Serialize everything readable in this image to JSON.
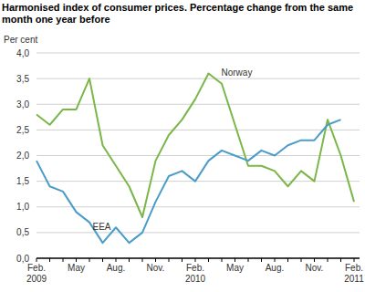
{
  "chart_data": {
    "type": "line",
    "title": "Harmonised index of consumer prices. Percentage change from the same month one year before",
    "y_label": "Per cent",
    "categories": [
      "Feb.\n2009",
      null,
      null,
      "May",
      null,
      null,
      "Aug.",
      null,
      null,
      "Nov.",
      null,
      null,
      "Feb.\n2010",
      null,
      null,
      "May",
      null,
      null,
      "Aug.",
      null,
      null,
      "Nov.",
      null,
      null,
      "Feb.\n2011"
    ],
    "series": [
      {
        "name": "Norway",
        "color": "#7ab648",
        "values": [
          2.8,
          2.6,
          2.9,
          2.9,
          3.5,
          2.2,
          1.8,
          1.4,
          0.8,
          1.9,
          2.4,
          2.7,
          3.1,
          3.6,
          3.4,
          2.6,
          1.8,
          1.8,
          1.7,
          1.4,
          1.7,
          1.5,
          2.7,
          2.0,
          1.1
        ]
      },
      {
        "name": "EEA",
        "color": "#4a9cc9",
        "values": [
          1.9,
          1.4,
          1.3,
          0.9,
          0.7,
          0.3,
          0.6,
          0.3,
          0.5,
          1.1,
          1.6,
          1.7,
          1.5,
          1.9,
          2.1,
          2.0,
          1.9,
          2.1,
          2.0,
          2.2,
          2.3,
          2.3,
          2.6,
          2.7,
          null
        ]
      }
    ],
    "ylim": [
      0,
      4
    ],
    "yticks": [
      {
        "value": 0,
        "label": "0,0"
      },
      {
        "value": 0.5,
        "label": "0,5"
      },
      {
        "value": 1,
        "label": "1,0"
      },
      {
        "value": 1.5,
        "label": "1,5"
      },
      {
        "value": 2,
        "label": "2,0"
      },
      {
        "value": 2.5,
        "label": "2,5"
      },
      {
        "value": 3,
        "label": "3,0"
      },
      {
        "value": 3.5,
        "label": "3,5"
      },
      {
        "value": 4,
        "label": "4,0"
      }
    ],
    "grid": true
  }
}
